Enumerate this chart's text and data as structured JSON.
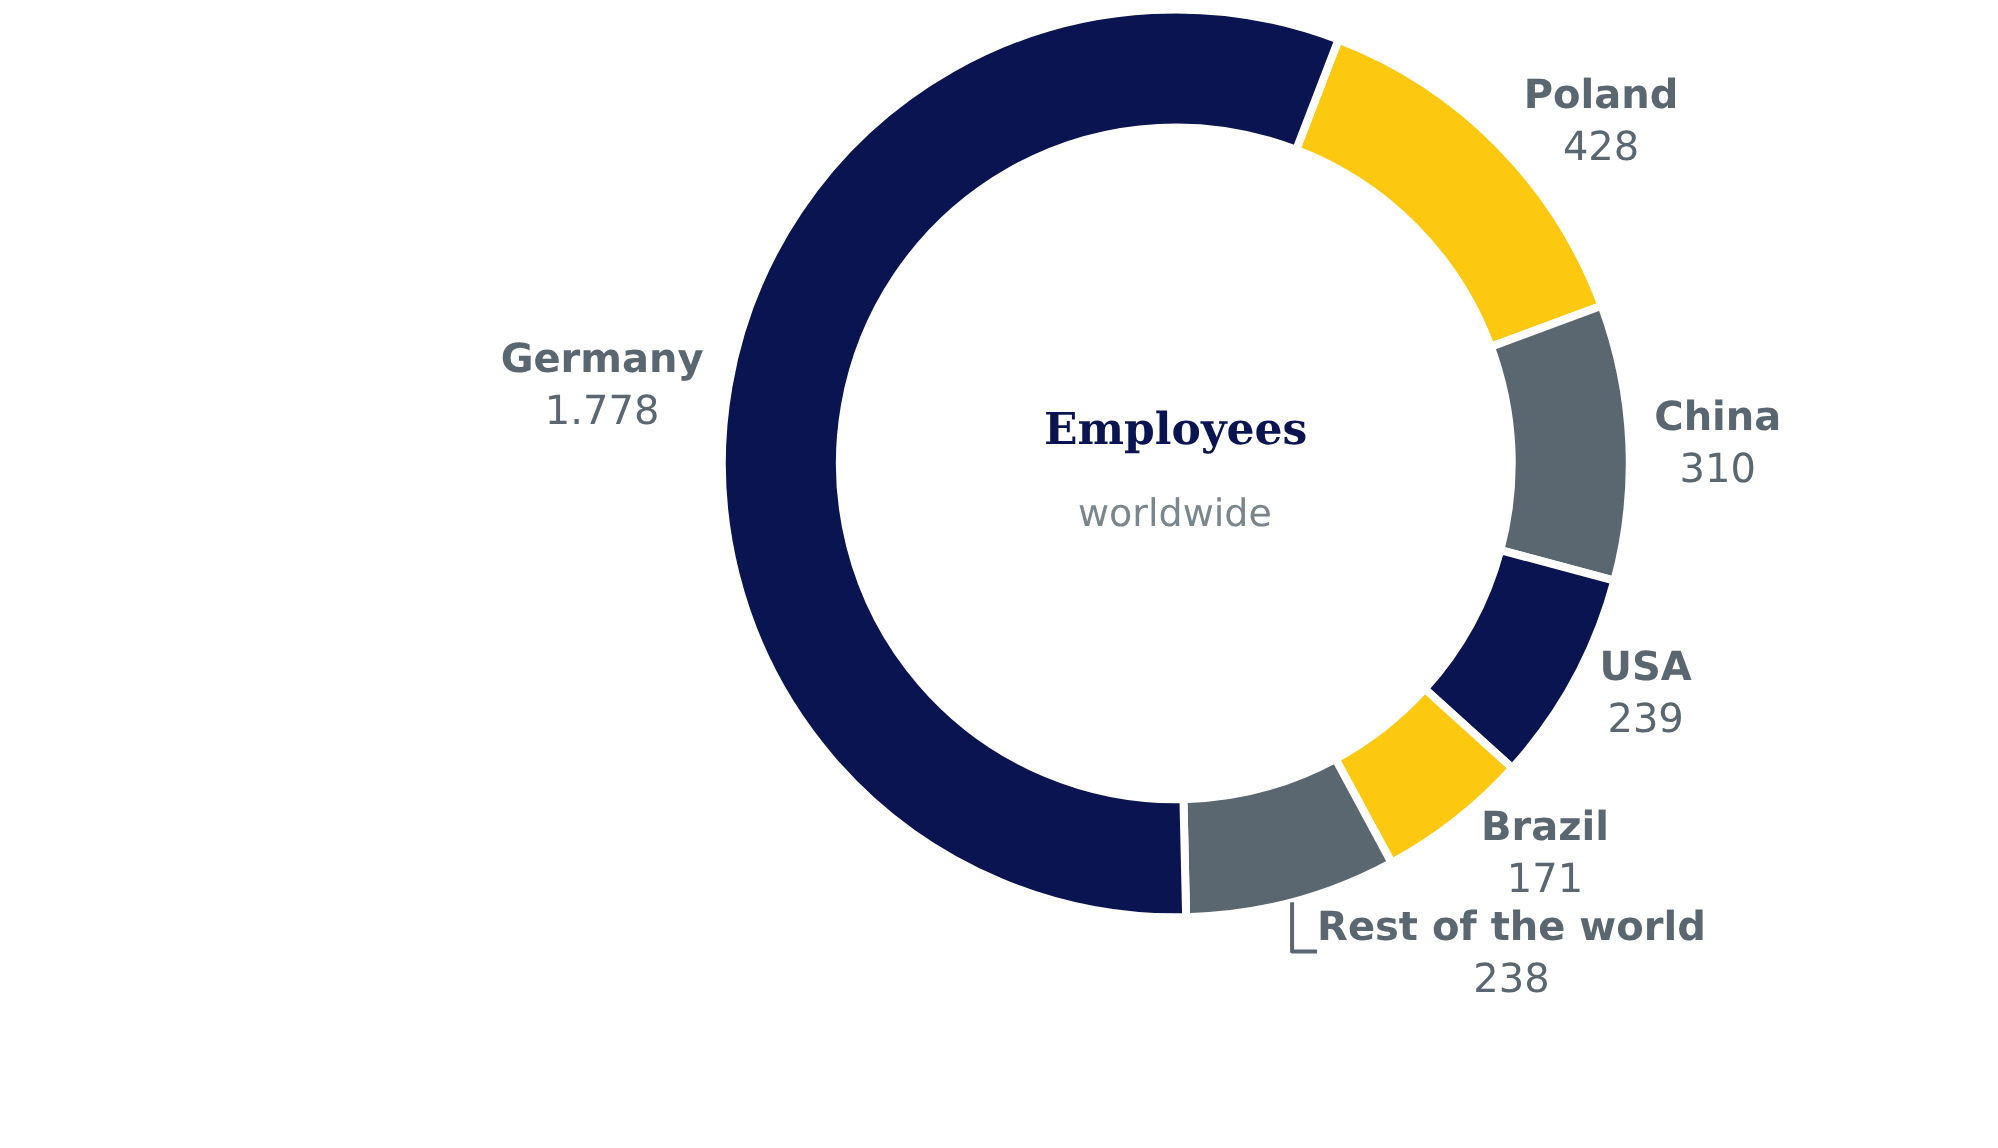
{
  "chart_data": {
    "type": "donut",
    "title": "Employees",
    "subtitle": "worldwide",
    "categories": [
      "Poland",
      "China",
      "USA",
      "Brazil",
      "Rest of the world",
      "Germany"
    ],
    "values": [
      428,
      310,
      239,
      171,
      238,
      1778
    ],
    "value_labels": [
      "428",
      "310",
      "239",
      "171",
      "238",
      "1.778"
    ],
    "colors": [
      "#fcc810",
      "#5a6670",
      "#0a1450",
      "#fcc810",
      "#5a6670",
      "#0a1450"
    ],
    "legend": false
  }
}
